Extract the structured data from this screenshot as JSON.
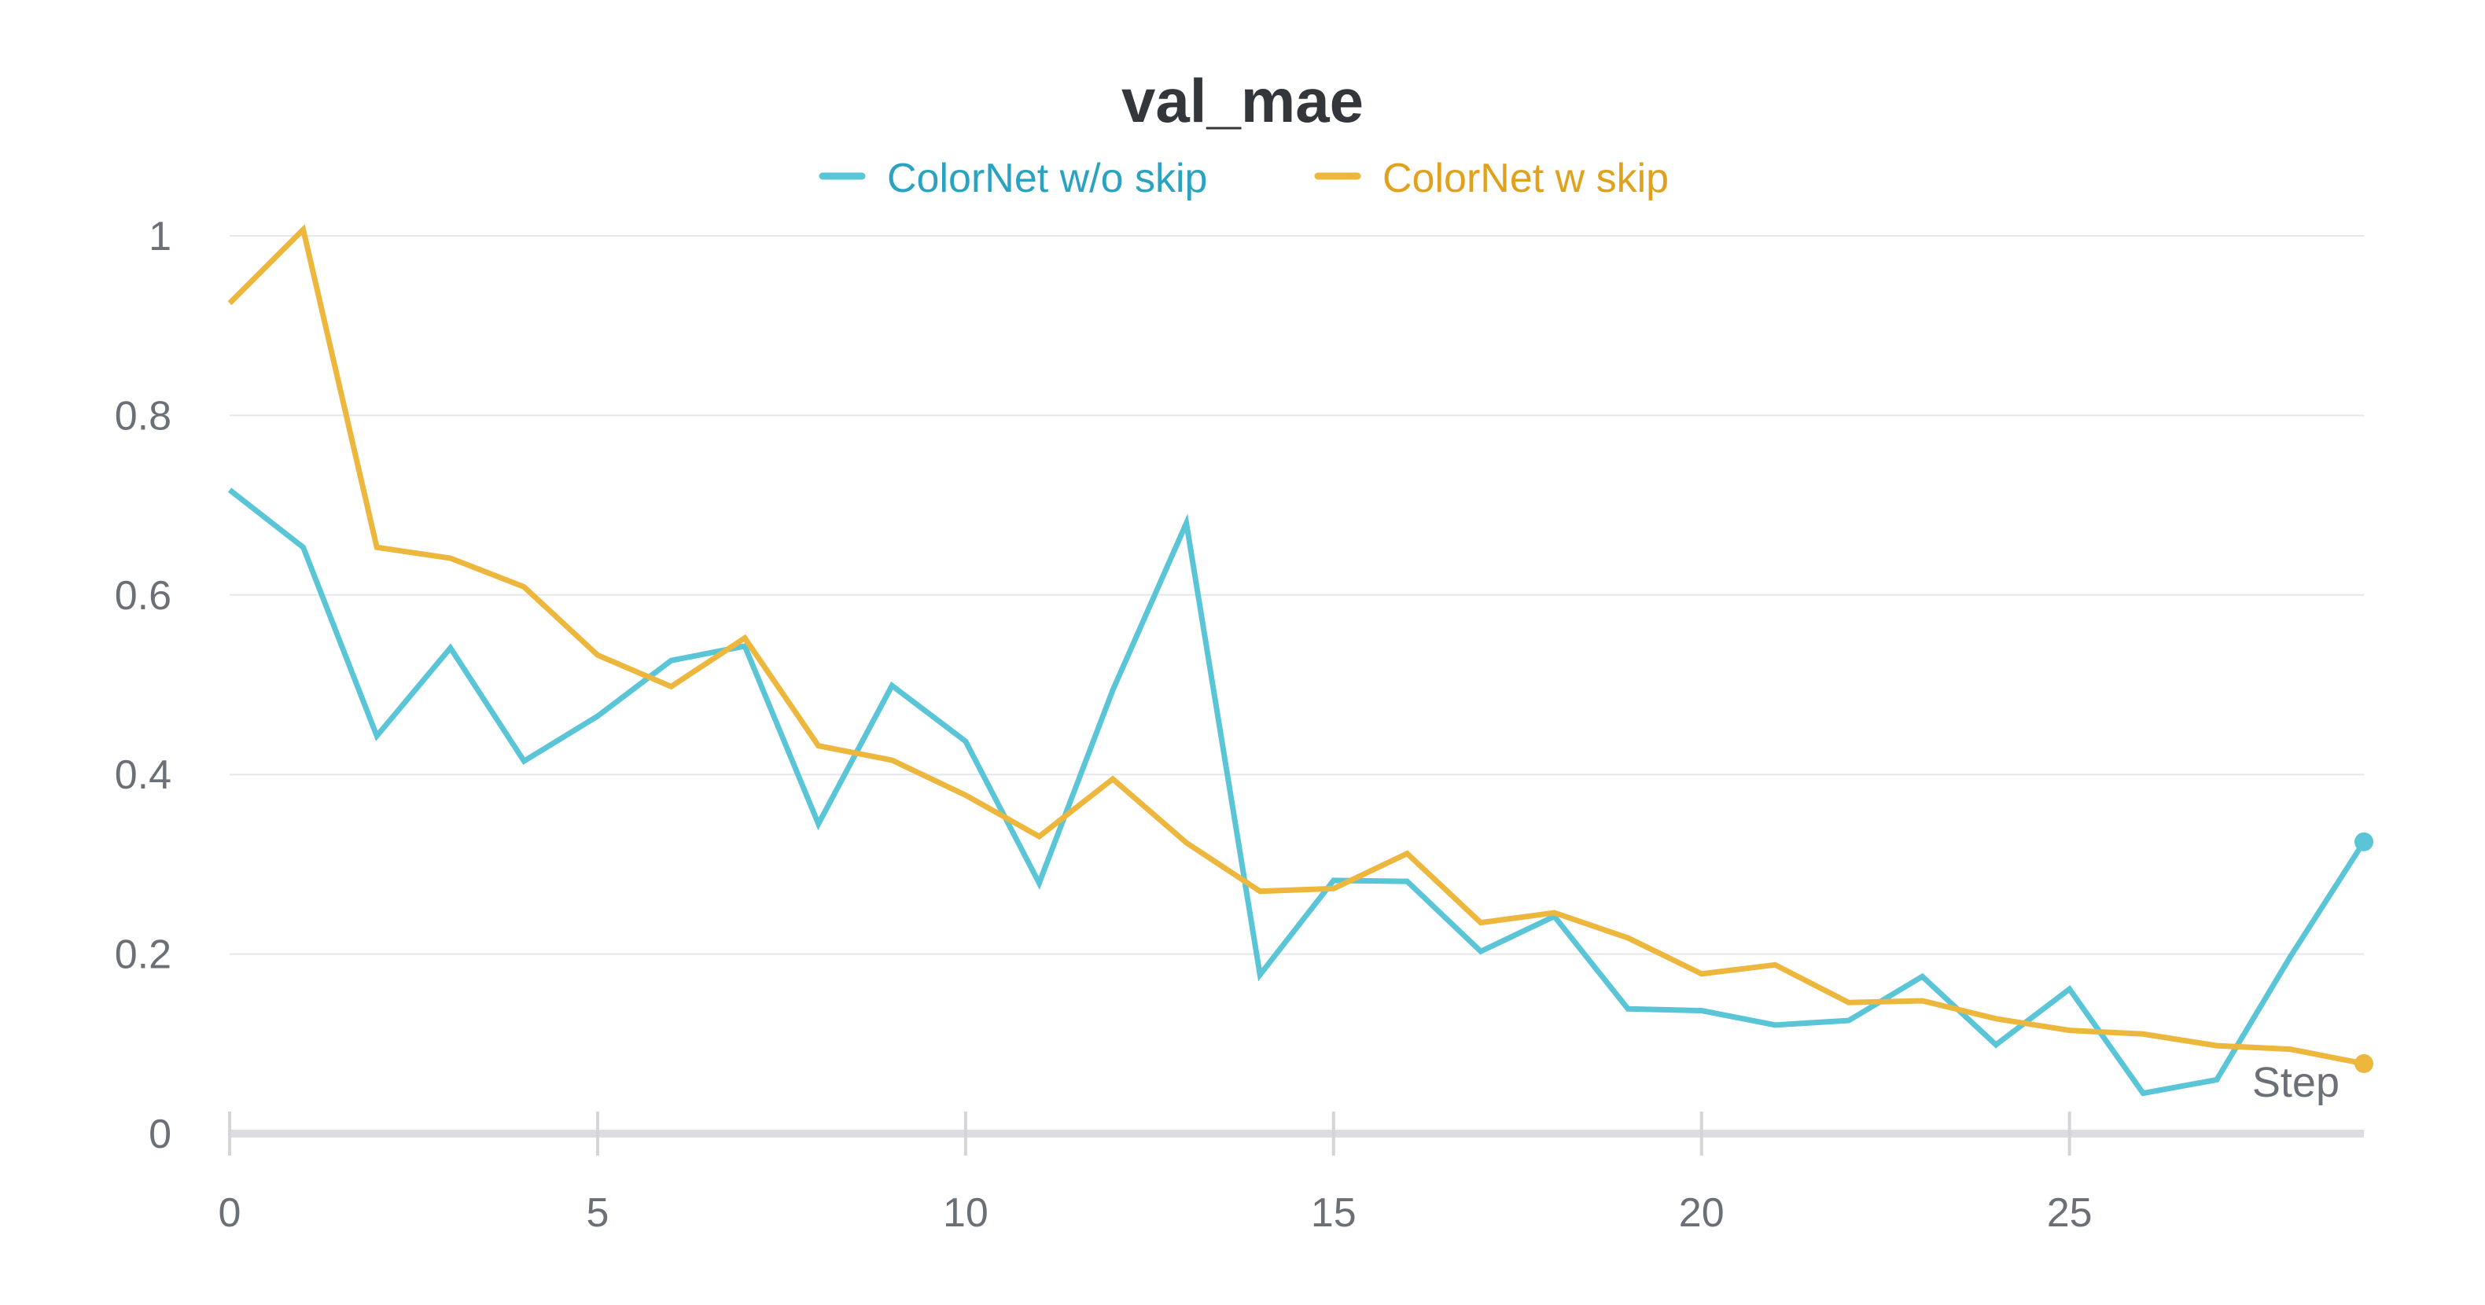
{
  "chart_data": {
    "type": "line",
    "title": "val_mae",
    "xlabel": "Step",
    "ylabel": "",
    "xlim": [
      0,
      29
    ],
    "ylim": [
      0,
      1
    ],
    "grid": true,
    "legend_position": "top-center",
    "x_ticks": [
      "0",
      "5",
      "10",
      "15",
      "20",
      "25"
    ],
    "x_tick_values": [
      0,
      5,
      10,
      15,
      20,
      25
    ],
    "y_ticks": [
      "0",
      "0.2",
      "0.4",
      "0.6",
      "0.8",
      "1"
    ],
    "y_tick_values": [
      0,
      0.2,
      0.4,
      0.6,
      0.8,
      1
    ],
    "x": [
      0,
      1,
      2,
      3,
      4,
      5,
      6,
      7,
      8,
      9,
      10,
      11,
      12,
      13,
      14,
      15,
      16,
      17,
      18,
      19,
      20,
      21,
      22,
      23,
      24,
      25,
      26,
      27,
      28,
      29
    ],
    "series": [
      {
        "name": "ColorNet w/o skip",
        "color": "#5bc5d8",
        "values": [
          0.717,
          0.653,
          0.443,
          0.541,
          0.415,
          0.465,
          0.527,
          0.543,
          0.345,
          0.499,
          0.437,
          0.279,
          0.494,
          0.68,
          0.177,
          0.282,
          0.281,
          0.203,
          0.242,
          0.139,
          0.137,
          0.121,
          0.126,
          0.175,
          0.099,
          0.161,
          0.045,
          0.06,
          0.197,
          0.325
        ]
      },
      {
        "name": "ColorNet w skip",
        "color": "#ecb73c",
        "values": [
          0.925,
          1.007,
          0.653,
          0.641,
          0.609,
          0.533,
          0.498,
          0.552,
          0.432,
          0.416,
          0.377,
          0.331,
          0.395,
          0.324,
          0.27,
          0.273,
          0.312,
          0.235,
          0.246,
          0.218,
          0.178,
          0.188,
          0.146,
          0.148,
          0.128,
          0.115,
          0.111,
          0.098,
          0.094,
          0.078
        ]
      }
    ]
  },
  "legend": {
    "text_colors": [
      "#2aa3c0",
      "#e0a21c"
    ]
  }
}
